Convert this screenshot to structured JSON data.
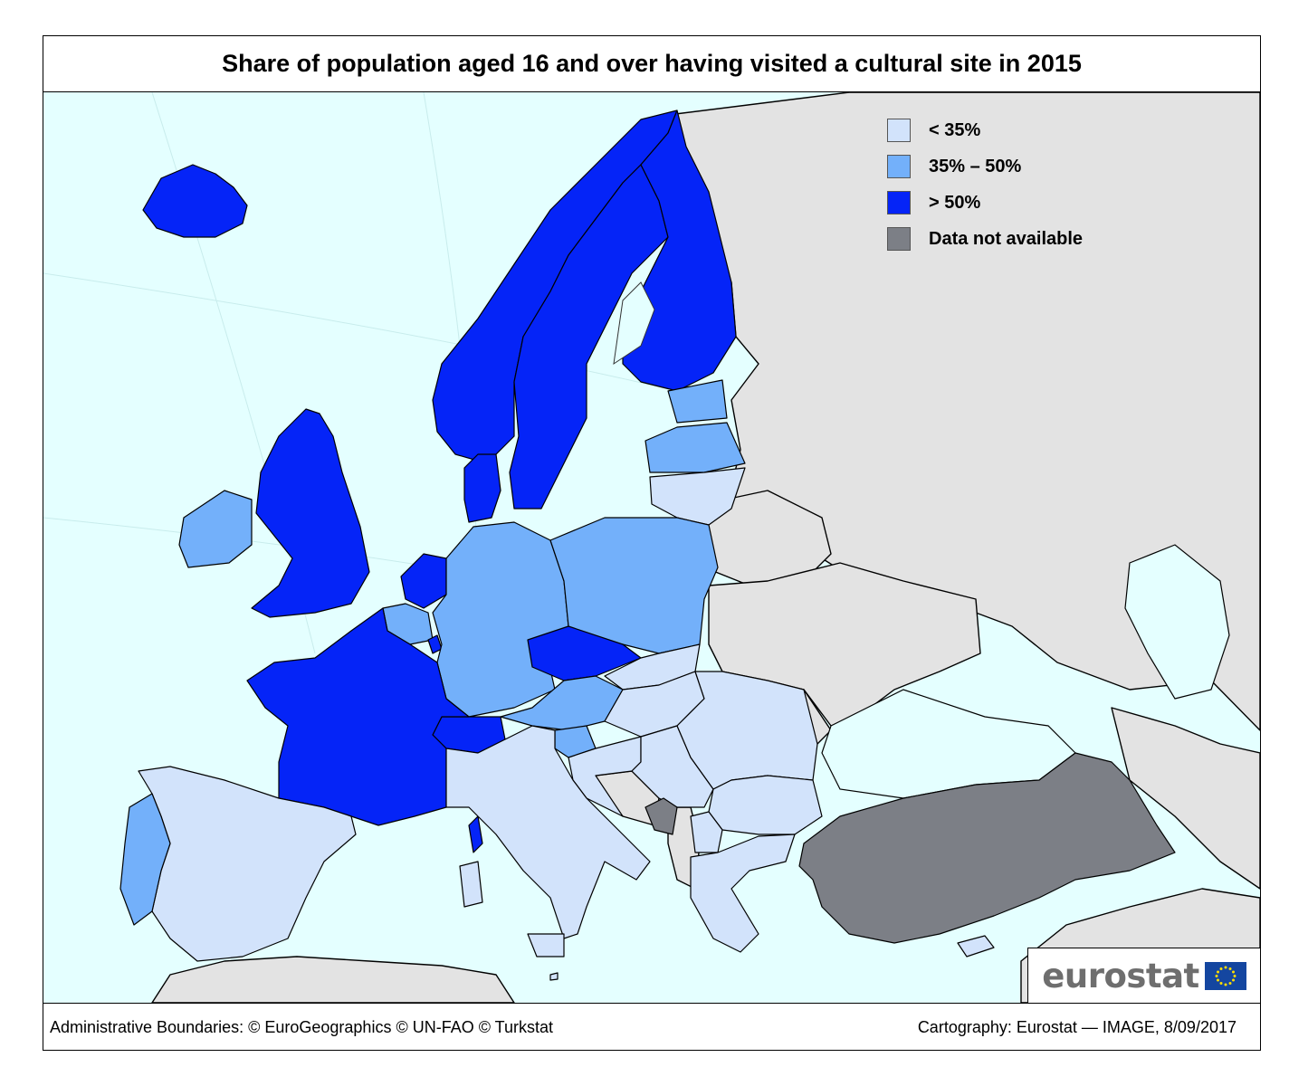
{
  "title": "Share of population aged 16 and over having visited a cultural site in 2015",
  "legend": [
    {
      "label": "< 35%",
      "color": "#d2e3fb"
    },
    {
      "label": "35% – 50%",
      "color": "#73b0fa"
    },
    {
      "label": "> 50%",
      "color": "#0524f7"
    },
    {
      "label": "Data not available",
      "color": "#7c7f86"
    }
  ],
  "colors": {
    "sea": "#e4ffff",
    "non_eu_land": "#e3e3e3",
    "border": "#000000"
  },
  "logo": {
    "text": "eurostat",
    "icon": "eu-flag-icon"
  },
  "footer": {
    "left": "Administrative Boundaries: © EuroGeographics © UN-FAO © Turkstat",
    "right": "Cartography: Eurostat — IMAGE, 8/09/2017"
  },
  "regions": [
    {
      "name": "Iceland",
      "category": "> 50%"
    },
    {
      "name": "Norway",
      "category": "> 50%"
    },
    {
      "name": "Sweden",
      "category": "> 50%"
    },
    {
      "name": "Finland",
      "category": "> 50%"
    },
    {
      "name": "Estonia",
      "category": "35% – 50%"
    },
    {
      "name": "Latvia",
      "category": "35% – 50%"
    },
    {
      "name": "Lithuania",
      "category": "< 35%"
    },
    {
      "name": "Denmark",
      "category": "> 50%"
    },
    {
      "name": "Ireland",
      "category": "35% – 50%"
    },
    {
      "name": "United Kingdom",
      "category": "> 50%"
    },
    {
      "name": "Netherlands",
      "category": "> 50%"
    },
    {
      "name": "Belgium",
      "category": "35% – 50%"
    },
    {
      "name": "Luxembourg",
      "category": "> 50%"
    },
    {
      "name": "Germany",
      "category": "35% – 50%"
    },
    {
      "name": "Poland",
      "category": "35% – 50%"
    },
    {
      "name": "Czechia",
      "category": "> 50%"
    },
    {
      "name": "Slovakia",
      "category": "< 35%"
    },
    {
      "name": "Austria",
      "category": "35% – 50%"
    },
    {
      "name": "Hungary",
      "category": "< 35%"
    },
    {
      "name": "Slovenia",
      "category": "35% – 50%"
    },
    {
      "name": "Croatia",
      "category": "< 35%"
    },
    {
      "name": "Serbia",
      "category": "< 35%"
    },
    {
      "name": "Romania",
      "category": "< 35%"
    },
    {
      "name": "Bulgaria",
      "category": "< 35%"
    },
    {
      "name": "North Macedonia",
      "category": "< 35%"
    },
    {
      "name": "Montenegro",
      "category": "Data not available"
    },
    {
      "name": "Greece",
      "category": "< 35%"
    },
    {
      "name": "Cyprus",
      "category": "< 35%"
    },
    {
      "name": "Turkey",
      "category": "Data not available"
    },
    {
      "name": "Switzerland",
      "category": "> 50%"
    },
    {
      "name": "France",
      "category": "> 50%"
    },
    {
      "name": "Italy",
      "category": "< 35%"
    },
    {
      "name": "Spain",
      "category": "< 35%"
    },
    {
      "name": "Portugal",
      "category": "35% – 50%"
    },
    {
      "name": "Malta",
      "category": "< 35%"
    }
  ]
}
